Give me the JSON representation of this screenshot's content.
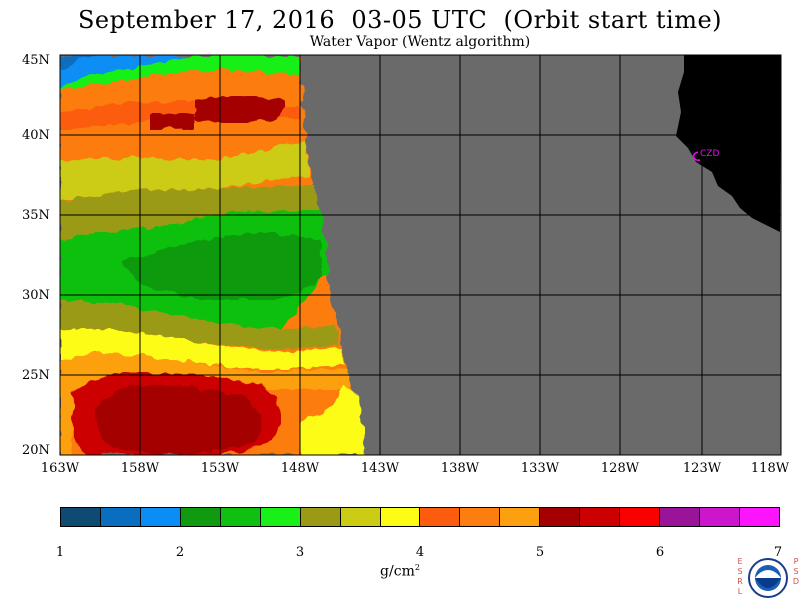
{
  "header": {
    "title": "September 17, 2016  03-05 UTC  (Orbit start time)",
    "subtitle": "Water Vapor (Wentz algorithm)"
  },
  "map": {
    "lat_labels": [
      "45N",
      "40N",
      "35N",
      "30N",
      "25N",
      "20N"
    ],
    "lon_labels": [
      "163W",
      "158W",
      "153W",
      "148W",
      "143W",
      "138W",
      "133W",
      "128W",
      "123W",
      "118W"
    ],
    "station_label": "CZD",
    "colors": {
      "no_data": "#6a6a6a",
      "land": "#000000",
      "grid": "#000000",
      "station": "#ff00ff"
    }
  },
  "colorbar": {
    "tick_labels": [
      "1",
      "2",
      "3",
      "4",
      "5",
      "6",
      "7"
    ],
    "unit": "g/cm",
    "unit_sup": "2",
    "swatches": [
      "#0e4a72",
      "#0a6ec0",
      "#0a8ef5",
      "#0f9a0f",
      "#10c010",
      "#18f018",
      "#9a9a14",
      "#cccc14",
      "#fcfc14",
      "#fc5c0e",
      "#fc7d10",
      "#fca010",
      "#a40000",
      "#cc0000",
      "#fc0000",
      "#9a1499",
      "#cc16cc",
      "#fc14fc"
    ]
  },
  "logo": {
    "left_letters": "ESRL",
    "right_letters": "PSD"
  }
}
